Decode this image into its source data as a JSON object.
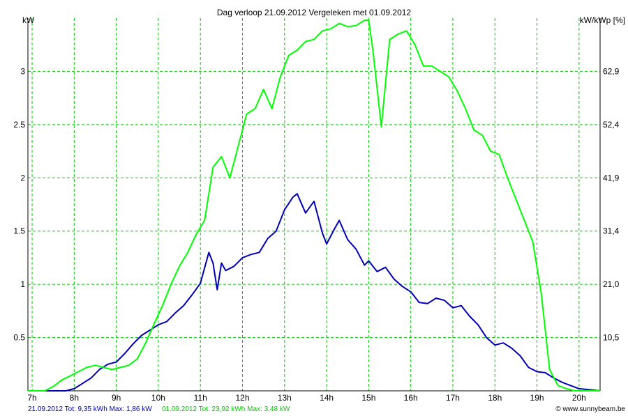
{
  "chart_data": {
    "type": "line",
    "title": "Dag  verloop 21.09.2012   Vergeleken met 01.09.2012",
    "ylabel": "kW",
    "y2label": "kW/kWp [%]",
    "xlim": [
      6.9,
      20.5
    ],
    "ylim": [
      0,
      3.5
    ],
    "y_ticks": [
      0.5,
      1,
      1.5,
      2,
      2.5,
      3
    ],
    "y_tick_labels": [
      "0.5",
      "1",
      "1.5",
      "2",
      "2.5",
      "3"
    ],
    "y2_ticks": [
      0.5,
      1,
      1.5,
      2,
      2.5,
      3
    ],
    "y2_tick_labels": [
      "10,5",
      "21,0",
      "31,4",
      "41,9",
      "52,4",
      "62,9"
    ],
    "x_ticks": [
      7,
      8,
      9,
      10,
      11,
      12,
      13,
      14,
      15,
      16,
      17,
      18,
      19,
      20
    ],
    "x_tick_labels": [
      "7h",
      "8h",
      "9h",
      "10h",
      "11h",
      "12h",
      "13h",
      "14h",
      "15h",
      "16h",
      "17h",
      "18h",
      "19h",
      "20h"
    ],
    "grid": true,
    "series": [
      {
        "name": "21.09.2012 Tot: 9,35 kWh Max: 1,86 kW",
        "color": "#0000b4",
        "x": [
          6.9,
          7.4,
          7.8,
          8.0,
          8.2,
          8.4,
          8.6,
          8.8,
          9.0,
          9.2,
          9.4,
          9.6,
          9.8,
          10.0,
          10.2,
          10.4,
          10.6,
          10.8,
          11.0,
          11.2,
          11.3,
          11.4,
          11.5,
          11.6,
          11.8,
          12.0,
          12.2,
          12.4,
          12.6,
          12.8,
          13.0,
          13.2,
          13.3,
          13.5,
          13.7,
          13.9,
          14.0,
          14.2,
          14.3,
          14.5,
          14.7,
          14.9,
          15.0,
          15.2,
          15.4,
          15.6,
          15.8,
          16.0,
          16.2,
          16.4,
          16.6,
          16.8,
          17.0,
          17.2,
          17.4,
          17.6,
          17.8,
          18.0,
          18.2,
          18.4,
          18.6,
          18.8,
          19.0,
          19.2,
          19.4,
          19.6,
          19.8,
          20.0,
          20.5
        ],
        "y": [
          0,
          0,
          0,
          0.02,
          0.07,
          0.12,
          0.2,
          0.25,
          0.27,
          0.35,
          0.44,
          0.52,
          0.57,
          0.62,
          0.65,
          0.73,
          0.8,
          0.9,
          1.01,
          1.3,
          1.2,
          0.95,
          1.2,
          1.13,
          1.17,
          1.25,
          1.28,
          1.3,
          1.43,
          1.5,
          1.7,
          1.82,
          1.85,
          1.67,
          1.78,
          1.48,
          1.38,
          1.53,
          1.6,
          1.42,
          1.33,
          1.18,
          1.22,
          1.12,
          1.16,
          1.05,
          0.98,
          0.93,
          0.83,
          0.82,
          0.87,
          0.85,
          0.78,
          0.8,
          0.7,
          0.62,
          0.5,
          0.43,
          0.45,
          0.4,
          0.33,
          0.22,
          0.18,
          0.17,
          0.12,
          0.08,
          0.05,
          0.02,
          0
        ]
      },
      {
        "name": "01.09.2012 Tot: 23,92 kWh Max: 3,48 kW",
        "color": "#00ff00",
        "x": [
          6.9,
          7.3,
          7.5,
          7.7,
          7.9,
          8.1,
          8.3,
          8.5,
          8.7,
          8.9,
          9.1,
          9.3,
          9.5,
          9.7,
          9.9,
          10.1,
          10.3,
          10.5,
          10.7,
          10.9,
          11.1,
          11.3,
          11.5,
          11.7,
          11.9,
          12.1,
          12.3,
          12.5,
          12.7,
          12.9,
          13.1,
          13.3,
          13.5,
          13.7,
          13.9,
          14.1,
          14.3,
          14.5,
          14.7,
          14.9,
          15.0,
          15.1,
          15.3,
          15.5,
          15.7,
          15.9,
          16.1,
          16.3,
          16.5,
          16.7,
          16.9,
          17.1,
          17.3,
          17.5,
          17.7,
          17.9,
          18.1,
          18.3,
          18.5,
          18.7,
          18.9,
          19.1,
          19.3,
          19.5,
          19.7,
          19.9,
          20.1,
          20.5
        ],
        "y": [
          0,
          0,
          0.04,
          0.1,
          0.14,
          0.18,
          0.22,
          0.24,
          0.22,
          0.2,
          0.22,
          0.24,
          0.3,
          0.45,
          0.63,
          0.8,
          1.0,
          1.17,
          1.3,
          1.47,
          1.6,
          2.1,
          2.2,
          2.0,
          2.3,
          2.6,
          2.65,
          2.83,
          2.65,
          2.95,
          3.15,
          3.2,
          3.28,
          3.3,
          3.38,
          3.4,
          3.45,
          3.42,
          3.43,
          3.48,
          3.48,
          3.2,
          2.48,
          3.3,
          3.35,
          3.38,
          3.25,
          3.05,
          3.05,
          3.0,
          2.95,
          2.82,
          2.65,
          2.45,
          2.4,
          2.25,
          2.22,
          2.0,
          1.8,
          1.6,
          1.4,
          0.92,
          0.2,
          0.05,
          0.02,
          0,
          0,
          0
        ]
      }
    ]
  },
  "footer": {
    "series1_text": "21.09.2012 Tot: 9,35 kWh Max: 1,86 kW",
    "series2_text": "01.09.2012 Tot: 23,92 kWh Max: 3,48 kW",
    "credit": "© www.sunnybeam.be"
  }
}
